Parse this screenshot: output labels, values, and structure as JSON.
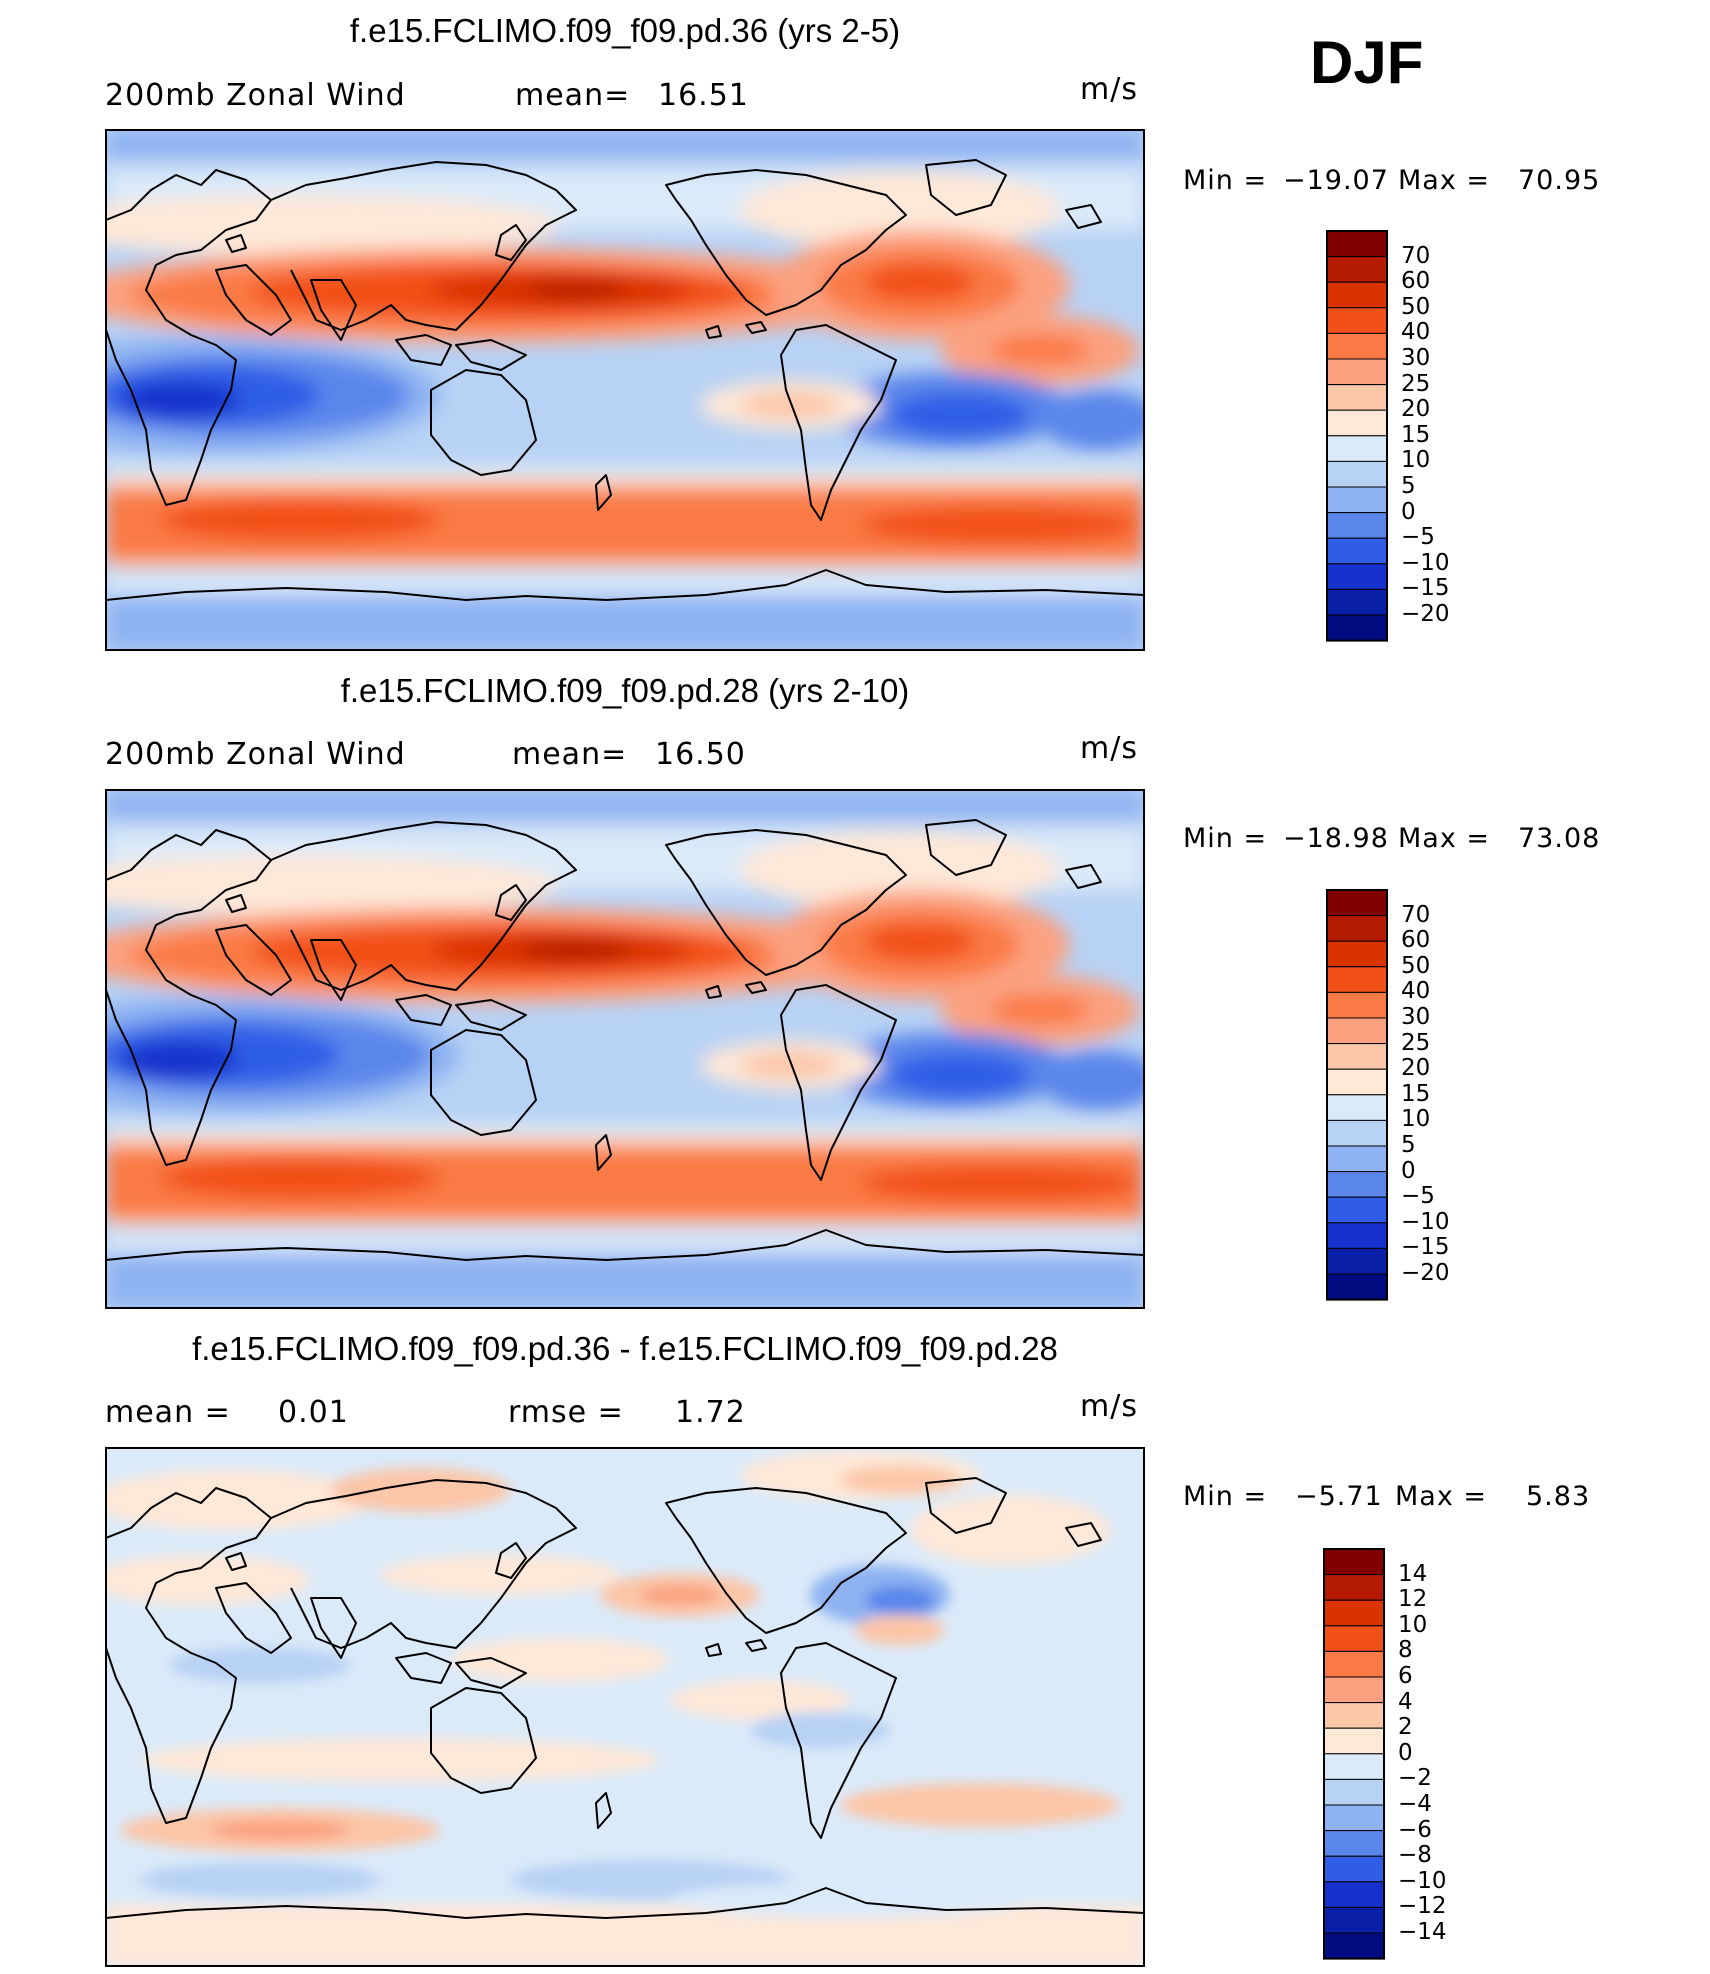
{
  "season": "DJF",
  "panels": [
    {
      "title": "f.e15.FCLIMO.f09_f09.pd.36 (yrs 2-5)",
      "left_label": "200mb Zonal Wind",
      "mid_label": "mean=",
      "mid_value": "16.51",
      "units": "m/s",
      "min_label": "Min =",
      "min_value": "−19.07",
      "max_label": "Max =",
      "max_value": "70.95"
    },
    {
      "title": "f.e15.FCLIMO.f09_f09.pd.28 (yrs 2-10)",
      "left_label": "200mb Zonal Wind",
      "mid_label": "mean=",
      "mid_value": "16.50",
      "units": "m/s",
      "min_label": "Min =",
      "min_value": "−18.98",
      "max_label": "Max =",
      "max_value": "73.08"
    },
    {
      "title": "f.e15.FCLIMO.f09_f09.pd.36 - f.e15.FCLIMO.f09_f09.pd.28",
      "left_label": "mean =",
      "left_value": "0.01",
      "mid_label": "rmse =",
      "mid_value": "1.72",
      "units": "m/s",
      "min_label": "Min =",
      "min_value": "−5.71",
      "max_label": "Max =",
      "max_value": "5.83"
    }
  ],
  "colorbars": [
    {
      "labels": [
        "70",
        "60",
        "50",
        "40",
        "30",
        "25",
        "20",
        "15",
        "10",
        "5",
        "0",
        "−5",
        "−10",
        "−15",
        "−20"
      ],
      "colors": [
        "#800000",
        "#b31a00",
        "#d93300",
        "#f25019",
        "#fa7a45",
        "#fba180",
        "#fcc6a8",
        "#fee8d8",
        "#dbeaf9",
        "#b8d2f5",
        "#8fb3f2",
        "#5a86eb",
        "#2f5de6",
        "#1533cc",
        "#0a1fa8",
        "#000c80"
      ]
    },
    {
      "labels": [
        "70",
        "60",
        "50",
        "40",
        "30",
        "25",
        "20",
        "15",
        "10",
        "5",
        "0",
        "−5",
        "−10",
        "−15",
        "−20"
      ],
      "colors": [
        "#800000",
        "#b31a00",
        "#d93300",
        "#f25019",
        "#fa7a45",
        "#fba180",
        "#fcc6a8",
        "#fee8d8",
        "#dbeaf9",
        "#b8d2f5",
        "#8fb3f2",
        "#5a86eb",
        "#2f5de6",
        "#1533cc",
        "#0a1fa8",
        "#000c80"
      ]
    },
    {
      "labels": [
        "14",
        "12",
        "10",
        "8",
        "6",
        "4",
        "2",
        "0",
        "−2",
        "−4",
        "−6",
        "−8",
        "−10",
        "−12",
        "−14"
      ],
      "colors": [
        "#800000",
        "#b31a00",
        "#d93300",
        "#f25019",
        "#fa7a45",
        "#fba180",
        "#fcc6a8",
        "#fee8d8",
        "#dbeaf9",
        "#b8d2f5",
        "#8fb3f2",
        "#5a86eb",
        "#2f5de6",
        "#1533cc",
        "#0a1fa8",
        "#000c80"
      ]
    }
  ],
  "chart_data": [
    {
      "type": "heatmap",
      "title": "f.e15.FCLIMO.f09_f09.pd.36 (yrs 2-5)",
      "variable": "200mb Zonal Wind",
      "units": "m/s",
      "levels": [
        -20,
        -15,
        -10,
        -5,
        0,
        5,
        10,
        15,
        20,
        25,
        30,
        40,
        50,
        60,
        70
      ],
      "min": -19.07,
      "max": 70.95,
      "mean": 16.51,
      "jets": [
        {
          "lat": 33,
          "lon": 140,
          "value": 70
        },
        {
          "lat": 35,
          "lon": 285,
          "value": 50
        },
        {
          "lat": -45,
          "lon": 60,
          "value": 40
        },
        {
          "lat": -10,
          "lon": 25,
          "value": -15
        },
        {
          "lat": -8,
          "lon": 300,
          "value": -15
        }
      ]
    },
    {
      "type": "heatmap",
      "title": "f.e15.FCLIMO.f09_f09.pd.28 (yrs 2-10)",
      "variable": "200mb Zonal Wind",
      "units": "m/s",
      "levels": [
        -20,
        -15,
        -10,
        -5,
        0,
        5,
        10,
        15,
        20,
        25,
        30,
        40,
        50,
        60,
        70
      ],
      "min": -18.98,
      "max": 73.08,
      "mean": 16.5,
      "jets": [
        {
          "lat": 33,
          "lon": 140,
          "value": 70
        },
        {
          "lat": 35,
          "lon": 285,
          "value": 50
        },
        {
          "lat": -45,
          "lon": 60,
          "value": 40
        },
        {
          "lat": -10,
          "lon": 25,
          "value": -15
        },
        {
          "lat": -8,
          "lon": 300,
          "value": -15
        }
      ]
    },
    {
      "type": "heatmap",
      "title": "f.e15.FCLIMO.f09_f09.pd.36 - f.e15.FCLIMO.f09_f09.pd.28",
      "units": "m/s",
      "levels": [
        -14,
        -12,
        -10,
        -8,
        -6,
        -4,
        -2,
        0,
        2,
        4,
        6,
        8,
        10,
        12,
        14
      ],
      "min": -5.71,
      "max": 5.83,
      "mean": 0.01,
      "rmse": 1.72
    }
  ]
}
